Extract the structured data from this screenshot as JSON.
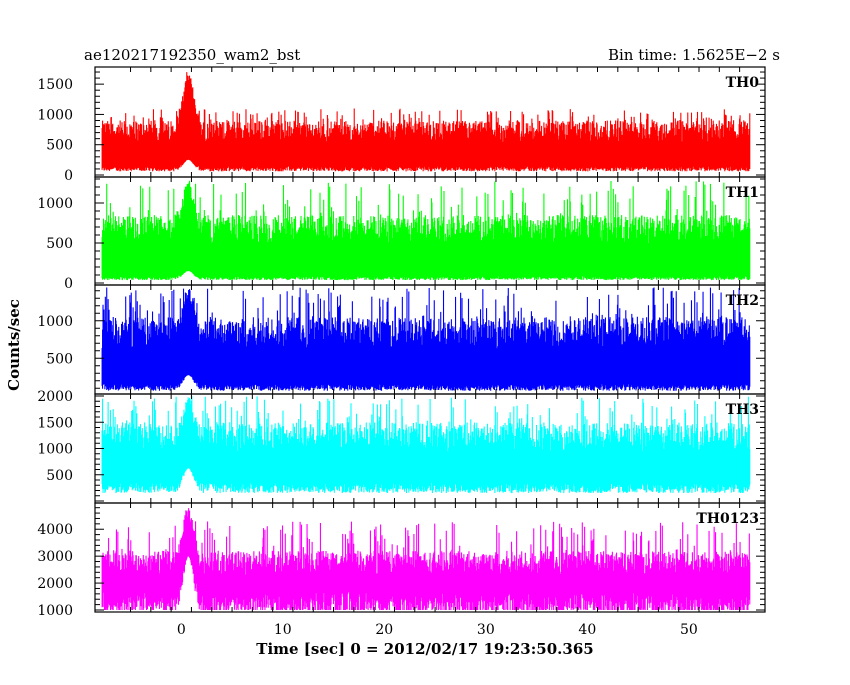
{
  "header": {
    "left_title": "ae120217192350_wam2_bst",
    "right_title": "Bin time: 1.5625E−2 s"
  },
  "chart_data": {
    "type": "line",
    "title": "ae120217192350_wam2_bst",
    "subtitle": "Bin time: 1.5625E−2 s",
    "xlabel": "Time [sec] 0 = 2012/02/17 19:23:50.365",
    "ylabel": "Counts/sec",
    "xlim": [
      -8.5,
      57.5
    ],
    "x_data_range": [
      -7.8,
      56.0
    ],
    "x_ticks": [
      0,
      10,
      20,
      30,
      40,
      50
    ],
    "x_tick_labels": [
      "0",
      "10",
      "20",
      "30",
      "40",
      "50"
    ],
    "bin_time_s": 0.015625,
    "burst_time_s": 0.7,
    "panels": [
      {
        "name": "TH0",
        "color": "#ff0000",
        "ylim": [
          0,
          1750
        ],
        "y_ticks": [
          0,
          500,
          1000,
          1500
        ],
        "y_tick_labels": [
          "0",
          "500",
          "1000",
          "1500"
        ],
        "baseline_low": 100,
        "baseline_high": 900,
        "spike_max": 1100,
        "burst_peak": 1750
      },
      {
        "name": "TH1",
        "color": "#00ff00",
        "ylim": [
          0,
          1300
        ],
        "y_ticks": [
          0,
          500,
          1000
        ],
        "y_tick_labels": [
          "0",
          "500",
          "1000"
        ],
        "baseline_low": 60,
        "baseline_high": 850,
        "spike_max": 1280,
        "burst_peak": 1300
      },
      {
        "name": "TH2",
        "color": "#0000ff",
        "ylim": [
          50,
          1450
        ],
        "y_ticks": [
          500,
          1000
        ],
        "y_tick_labels": [
          "500",
          "1000"
        ],
        "baseline_low": 110,
        "baseline_high": 1050,
        "spike_max": 1450,
        "burst_peak": 1450
      },
      {
        "name": "TH3",
        "color": "#00ffff",
        "ylim": [
          0,
          2000
        ],
        "y_ticks": [
          500,
          1000,
          1500,
          2000
        ],
        "y_tick_labels": [
          "500",
          "1000",
          "1500",
          "2000"
        ],
        "baseline_low": 250,
        "baseline_high": 1500,
        "spike_max": 2000,
        "burst_peak": 2000
      },
      {
        "name": "TH0123",
        "color": "#ff00ff",
        "ylim": [
          1000,
          4900
        ],
        "y_ticks": [
          1000,
          2000,
          3000,
          4000
        ],
        "y_tick_labels": [
          "1000",
          "2000",
          "3000",
          "4000"
        ],
        "baseline_low": 1200,
        "baseline_high": 3200,
        "spike_max": 4300,
        "burst_peak": 4900
      }
    ]
  }
}
